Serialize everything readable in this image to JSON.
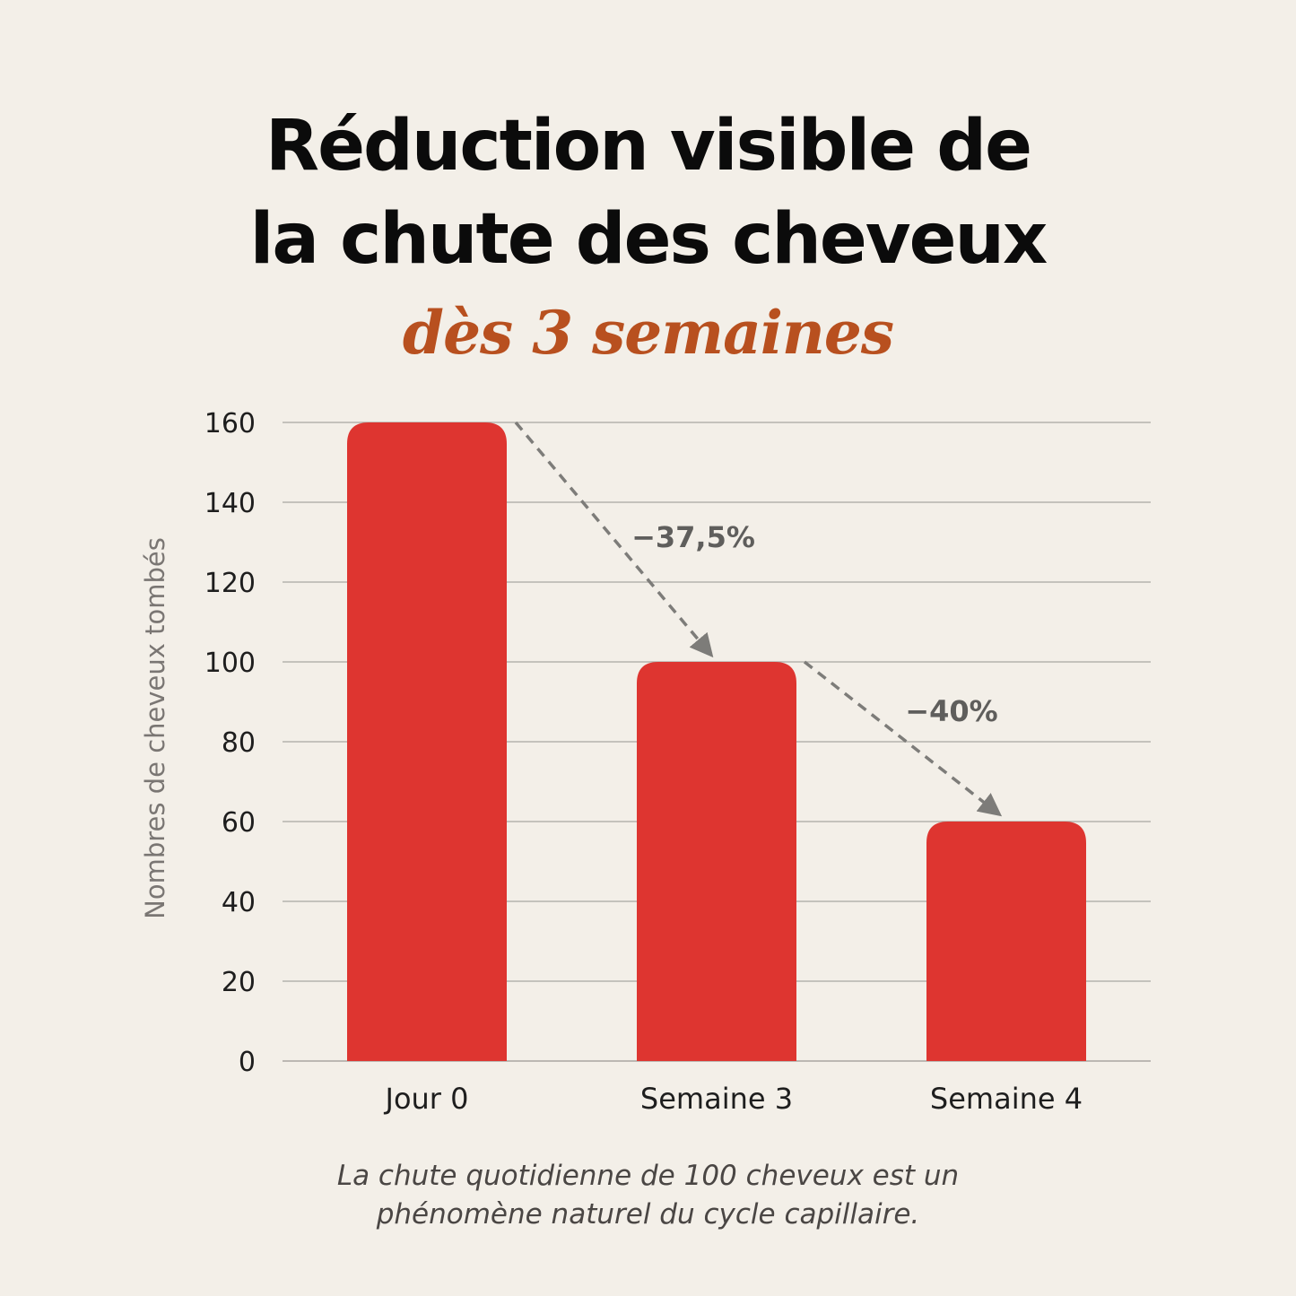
{
  "title": {
    "line1": "Réduction visible de",
    "line2": "la chute des cheveux"
  },
  "subtitle": "dès 3 semaines",
  "footnote": {
    "line1": "La chute quotidienne de 100 cheveux est un",
    "line2": "phénomène naturel du cycle capillaire."
  },
  "colors": {
    "background": "#f3efe8",
    "bar": "#de3530",
    "title": "#0b0b0b",
    "subtitle": "#b8501f",
    "annotation": "#5f5e5c",
    "arrow": "#7d7c79",
    "grid": "#a9a6a1",
    "axis_text": "#1e1e1e",
    "ylabel": "#7a7673"
  },
  "chart_data": {
    "type": "bar",
    "categories": [
      "Jour 0",
      "Semaine 3",
      "Semaine 4"
    ],
    "values": [
      160,
      100,
      60
    ],
    "ylabel": "Nombres de cheveux tombés",
    "xlabel": "",
    "ylim": [
      0,
      160
    ],
    "yticks": [
      0,
      20,
      40,
      60,
      80,
      100,
      120,
      140,
      160
    ],
    "grid": true,
    "annotations": [
      {
        "text": "−37,5%",
        "from": "Jour 0",
        "to": "Semaine 3"
      },
      {
        "text": "−40%",
        "from": "Semaine 3",
        "to": "Semaine 4"
      }
    ]
  }
}
